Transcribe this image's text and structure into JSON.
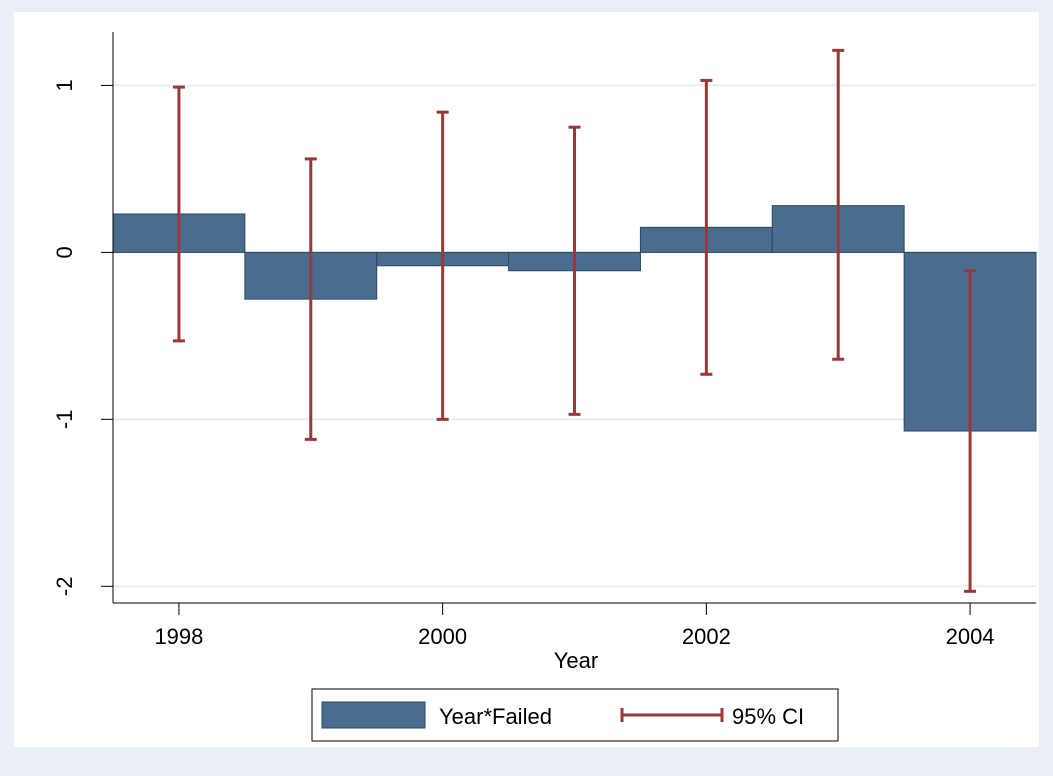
{
  "chart_data": {
    "type": "bar",
    "xlabel": "Year",
    "ylabel": "",
    "x": [
      1998,
      1999,
      2000,
      2001,
      2002,
      2003,
      2004
    ],
    "series": [
      {
        "name": "Year*Failed",
        "values": [
          0.23,
          -0.28,
          -0.08,
          -0.11,
          0.15,
          0.28,
          -1.07
        ]
      },
      {
        "name": "95% CI",
        "lower": [
          -0.53,
          -1.12,
          -1.0,
          -0.97,
          -0.73,
          -0.64,
          -2.03
        ],
        "upper": [
          0.99,
          0.56,
          0.84,
          0.75,
          1.03,
          1.21,
          -0.11
        ]
      }
    ],
    "xticks": [
      1998,
      2000,
      2002,
      2004
    ],
    "yticks": [
      -2,
      -1,
      0,
      1
    ],
    "xlim": [
      1997.5,
      2004.5
    ],
    "ylim": [
      -2.1,
      1.32
    ],
    "grid": "horizontal",
    "legend_position": "bottom",
    "colors": {
      "bar_fill": "#4a6d8f",
      "bar_edge": "#2a4866",
      "ci": "#9a3737",
      "grid": "#e8edf1",
      "plot_bg": "#ffffff",
      "outer_bg": "#e9eff4"
    }
  }
}
